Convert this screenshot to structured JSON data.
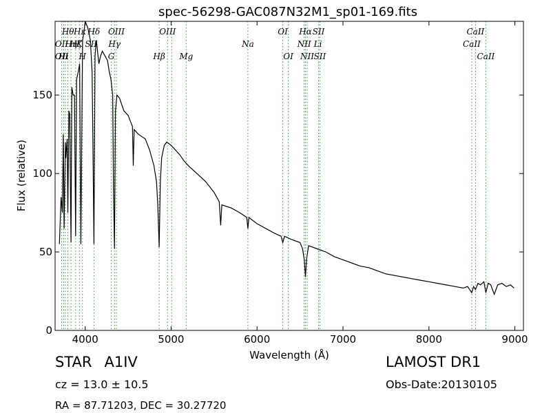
{
  "chart_data": {
    "type": "line",
    "title": "spec-56298-GAC087N32M1_sp01-169.fits",
    "xlabel": "Wavelength (Å)",
    "ylabel": "Flux (relative)",
    "xlim": [
      3650,
      9100
    ],
    "ylim": [
      0,
      197
    ],
    "xticks": [
      4000,
      5000,
      6000,
      7000,
      8000,
      9000
    ],
    "yticks": [
      0,
      50,
      100,
      150
    ],
    "grid": false,
    "line_color": "#000000",
    "marker_color": "#2ca02c",
    "series": [
      {
        "values_x": [
          3700,
          3720,
          3735,
          3745,
          3755,
          3770,
          3775,
          3790,
          3798,
          3810,
          3820,
          3835,
          3845,
          3860,
          3875,
          3889,
          3900,
          3920,
          3935,
          3950,
          3970,
          3985,
          4000,
          4030,
          4060,
          4080,
          4090,
          4102,
          4115,
          4130,
          4160,
          4180,
          4200,
          4230,
          4260,
          4280,
          4300,
          4320,
          4330,
          4341,
          4352,
          4370,
          4400,
          4450,
          4500,
          4550,
          4560,
          4570,
          4620,
          4700,
          4750,
          4800,
          4830,
          4845,
          4861,
          4875,
          4890,
          4920,
          4950,
          5000,
          5050,
          5100,
          5150,
          5200,
          5300,
          5400,
          5500,
          5560,
          5577,
          5590,
          5700,
          5800,
          5880,
          5893,
          5905,
          6000,
          6100,
          6200,
          6280,
          6300,
          6320,
          6400,
          6500,
          6530,
          6550,
          6563,
          6575,
          6600,
          6650,
          6700,
          6800,
          6900,
          7000,
          7100,
          7200,
          7300,
          7400,
          7500,
          7600,
          7700,
          7800,
          7900,
          8000,
          8100,
          8200,
          8300,
          8400,
          8450,
          8498,
          8520,
          8542,
          8570,
          8600,
          8640,
          8662,
          8690,
          8720,
          8760,
          8800,
          8850,
          8900,
          8950,
          8990
        ],
        "values_y": [
          55,
          85,
          75,
          125,
          65,
          120,
          110,
          122,
          75,
          140,
          138,
          56,
          155,
          150,
          150,
          60,
          160,
          165,
          170,
          55,
          185,
          190,
          197,
          193,
          185,
          165,
          120,
          55,
          175,
          185,
          170,
          175,
          178,
          175,
          172,
          165,
          160,
          150,
          90,
          52,
          140,
          150,
          148,
          140,
          137,
          130,
          105,
          128,
          125,
          122,
          115,
          105,
          95,
          80,
          53,
          95,
          110,
          118,
          120,
          118,
          115,
          112,
          108,
          105,
          100,
          95,
          88,
          82,
          67,
          80,
          78,
          75,
          72,
          65,
          72,
          68,
          65,
          62,
          60,
          56,
          60,
          58,
          56,
          52,
          45,
          34,
          45,
          54,
          53,
          52,
          50,
          47,
          45,
          43,
          41,
          40,
          38,
          36,
          35,
          34,
          33,
          32,
          31,
          30,
          29,
          28,
          27,
          28,
          24,
          28,
          26,
          30,
          29,
          31,
          24,
          30,
          29,
          23,
          29,
          30,
          28,
          29,
          27
        ]
      }
    ],
    "markers": {
      "wavelengths": [
        3727,
        3750,
        3771,
        3798,
        3835,
        3889,
        3933,
        3968,
        4102,
        4304,
        4341,
        4363,
        4861,
        4959,
        5007,
        5175,
        5893,
        6300,
        6364,
        6548,
        6563,
        6583,
        6716,
        6731,
        8498,
        8542,
        8662
      ],
      "labels": [
        {
          "text": "Hθ",
          "x": 3800,
          "row": 1
        },
        {
          "text": "Hκ",
          "x": 3940,
          "row": 1
        },
        {
          "text": "Hδ",
          "x": 4102,
          "row": 1
        },
        {
          "text": "OIII",
          "x": 4363,
          "row": 1
        },
        {
          "text": "OIII",
          "x": 4959,
          "row": 1
        },
        {
          "text": "OI",
          "x": 6300,
          "row": 1
        },
        {
          "text": "Hα",
          "x": 6563,
          "row": 1
        },
        {
          "text": "SII",
          "x": 6716,
          "row": 1
        },
        {
          "text": "CaII",
          "x": 8542,
          "row": 1
        },
        {
          "text": "OII",
          "x": 3727,
          "row": 2
        },
        {
          "text": "Hη",
          "x": 3835,
          "row": 2
        },
        {
          "text": "Hζ",
          "x": 3889,
          "row": 2
        },
        {
          "text": "K",
          "x": 3933,
          "row": 2
        },
        {
          "text": "SII",
          "x": 4068,
          "row": 2
        },
        {
          "text": "Hγ",
          "x": 4341,
          "row": 2
        },
        {
          "text": "Na",
          "x": 5893,
          "row": 2
        },
        {
          "text": "NII",
          "x": 6548,
          "row": 2
        },
        {
          "text": "Li",
          "x": 6708,
          "row": 2
        },
        {
          "text": "CaII",
          "x": 8498,
          "row": 2
        },
        {
          "text": "OII",
          "x": 3727,
          "row": 3
        },
        {
          "text": "Hι",
          "x": 3750,
          "row": 3
        },
        {
          "text": "H",
          "x": 3968,
          "row": 3
        },
        {
          "text": "G",
          "x": 4304,
          "row": 3
        },
        {
          "text": "Hβ",
          "x": 4861,
          "row": 3
        },
        {
          "text": "Mg",
          "x": 5175,
          "row": 3
        },
        {
          "text": "OI",
          "x": 6364,
          "row": 3
        },
        {
          "text": "NII",
          "x": 6583,
          "row": 3
        },
        {
          "text": "SII",
          "x": 6731,
          "row": 3
        },
        {
          "text": "CaII",
          "x": 8662,
          "row": 3
        }
      ]
    }
  },
  "info": {
    "object": "STAR",
    "subclass": "A1IV",
    "survey": "LAMOST DR1",
    "cz": "cz = 13.0 ± 10.5",
    "obs_date": "Obs-Date:20130105",
    "coords": "RA = 87.71203, DEC = 30.27720"
  }
}
